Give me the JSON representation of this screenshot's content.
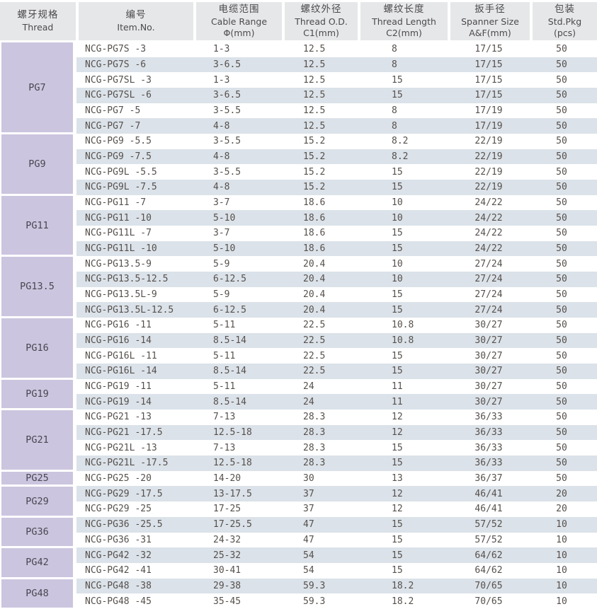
{
  "header": {
    "columns": [
      {
        "key": "thread",
        "lines": [
          "螺牙规格",
          "Thread"
        ]
      },
      {
        "key": "item-no",
        "lines": [
          "编号",
          "Item.No."
        ]
      },
      {
        "key": "cable-range",
        "lines": [
          "电缆范围",
          "Cable Range",
          "Φ(mm)"
        ]
      },
      {
        "key": "thread-od",
        "lines": [
          "螺纹外径",
          "Thread O.D.",
          "C1(mm)"
        ]
      },
      {
        "key": "thread-length",
        "lines": [
          "螺纹长度",
          "Thread Length",
          "C2(mm)"
        ]
      },
      {
        "key": "spanner-size",
        "lines": [
          "扳手径",
          "Spanner Size",
          "A&F(mm)"
        ]
      },
      {
        "key": "std-pkg",
        "lines": [
          "包装",
          "Std.Pkg",
          "(pcs)"
        ]
      }
    ]
  },
  "colors": {
    "header_bg": "#e6e7e9",
    "thread_cell_bg": "#ccc5df",
    "row_stripe_bg": "#dbe2e9",
    "text": "#56504c"
  },
  "groups": [
    {
      "thread": "PG7",
      "rows": [
        [
          "NCG-PG7S -3",
          "1-3",
          "12.5",
          "8",
          "17/15",
          "50"
        ],
        [
          "NCG-PG7S -6",
          "3-6.5",
          "12.5",
          "8",
          "17/15",
          "50"
        ],
        [
          "NCG-PG7SL -3",
          "1-3",
          "12.5",
          "15",
          "17/15",
          "50"
        ],
        [
          "NCG-PG7SL -6",
          "3-6.5",
          "12.5",
          "15",
          "17/15",
          "50"
        ],
        [
          "NCG-PG7 -5",
          "3-5.5",
          "12.5",
          "8",
          "17/19",
          "50"
        ],
        [
          "NCG-PG7 -7",
          "4-8",
          "12.5",
          "8",
          "17/19",
          "50"
        ]
      ]
    },
    {
      "thread": "PG9",
      "rows": [
        [
          "NCG-PG9 -5.5",
          "3-5.5",
          "15.2",
          "8.2",
          "22/19",
          "50"
        ],
        [
          "NCG-PG9 -7.5",
          "4-8",
          "15.2",
          "8.2",
          "22/19",
          "50"
        ],
        [
          "NCG-PG9L -5.5",
          "3-5.5",
          "15.2",
          "15",
          "22/19",
          "50"
        ],
        [
          "NCG-PG9L -7.5",
          "4-8",
          "15.2",
          "15",
          "22/19",
          "50"
        ]
      ]
    },
    {
      "thread": "PG11",
      "rows": [
        [
          "NCG-PG11 -7",
          "3-7",
          "18.6",
          "10",
          "24/22",
          "50"
        ],
        [
          "NCG-PG11 -10",
          "5-10",
          "18.6",
          "10",
          "24/22",
          "50"
        ],
        [
          "NCG-PG11L -7",
          "3-7",
          "18.6",
          "15",
          "24/22",
          "50"
        ],
        [
          "NCG-PG11L -10",
          "5-10",
          "18.6",
          "15",
          "24/22",
          "50"
        ]
      ]
    },
    {
      "thread": "PG13.5",
      "rows": [
        [
          "NCG-PG13.5-9",
          "5-9",
          "20.4",
          "10",
          "27/24",
          "50"
        ],
        [
          "NCG-PG13.5-12.5",
          "6-12.5",
          "20.4",
          "10",
          "27/24",
          "50"
        ],
        [
          "NCG-PG13.5L-9",
          "5-9",
          "20.4",
          "15",
          "27/24",
          "50"
        ],
        [
          "NCG-PG13.5L-12.5",
          "6-12.5",
          "20.4",
          "15",
          "27/24",
          "50"
        ]
      ]
    },
    {
      "thread": "PG16",
      "rows": [
        [
          "NCG-PG16 -11",
          "5-11",
          "22.5",
          "10.8",
          "30/27",
          "50"
        ],
        [
          "NCG-PG16 -14",
          "8.5-14",
          "22.5",
          "10.8",
          "30/27",
          "50"
        ],
        [
          "NCG-PG16L -11",
          "5-11",
          "22.5",
          "15",
          "30/27",
          "50"
        ],
        [
          "NCG-PG16L -14",
          "8.5-14",
          "22.5",
          "15",
          "30/27",
          "50"
        ]
      ]
    },
    {
      "thread": "PG19",
      "rows": [
        [
          "NCG-PG19 -11",
          "5-11",
          "24",
          "11",
          "30/27",
          "50"
        ],
        [
          "NCG-PG19 -14",
          "8.5-14",
          "24",
          "11",
          "30/27",
          "50"
        ]
      ]
    },
    {
      "thread": "PG21",
      "rows": [
        [
          "NCG-PG21 -13",
          "7-13",
          "28.3",
          "12",
          "36/33",
          "50"
        ],
        [
          "NCG-PG21 -17.5",
          "12.5-18",
          "28.3",
          "12",
          "36/33",
          "50"
        ],
        [
          "NCG-PG21L -13",
          "7-13",
          "28.3",
          "15",
          "36/33",
          "50"
        ],
        [
          "NCG-PG21L -17.5",
          "12.5-18",
          "28.3",
          "15",
          "36/33",
          "50"
        ]
      ]
    },
    {
      "thread": "PG25",
      "rows": [
        [
          "NCG-PG25 -20",
          "14-20",
          "30",
          "13",
          "36/37",
          "50"
        ]
      ]
    },
    {
      "thread": "PG29",
      "rows": [
        [
          "NCG-PG29 -17.5",
          "13-17.5",
          "37",
          "12",
          "46/41",
          "20"
        ],
        [
          "NCG-PG29 -25",
          "17-25",
          "37",
          "12",
          "46/41",
          "20"
        ]
      ]
    },
    {
      "thread": "PG36",
      "rows": [
        [
          "NCG-PG36 -25.5",
          "17-25.5",
          "47",
          "15",
          "57/52",
          "10"
        ],
        [
          "NCG-PG36 -31",
          "24-32",
          "47",
          "15",
          "57/52",
          "10"
        ]
      ]
    },
    {
      "thread": "PG42",
      "rows": [
        [
          "NCG-PG42 -32",
          "25-32",
          "54",
          "15",
          "64/62",
          "10"
        ],
        [
          "NCG-PG42 -41",
          "30-41",
          "54",
          "15",
          "64/62",
          "10"
        ]
      ]
    },
    {
      "thread": "PG48",
      "rows": [
        [
          "NCG-PG48 -38",
          "29-38",
          "59.3",
          "18.2",
          "70/65",
          "10"
        ],
        [
          "NCG-PG48 -45",
          "35-45",
          "59.3",
          "18.2",
          "70/65",
          "10"
        ]
      ]
    }
  ]
}
